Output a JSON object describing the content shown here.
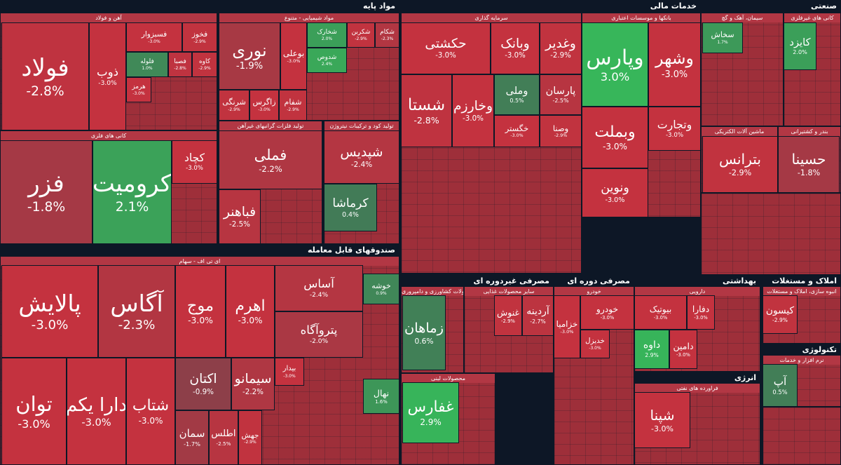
{
  "chart_data": {
    "type": "treemap",
    "color_scale": {
      "negative": "#c4323f",
      "neutral": "#4b4e55",
      "positive": "#37b65a"
    },
    "color_limit": 3,
    "groups": [
      {
        "title": "مواد پایه",
        "subgroups": [
          {
            "title": "آهن و فولاد",
            "names": [
              "فولاد",
              "ذوب",
              "فسبزوار",
              "فخوز",
              "فلوله",
              "فصبا",
              "کاوه",
              "هرمز"
            ],
            "values": [
              -2.8,
              -3.0,
              -3.0,
              -2.9,
              1.0,
              -2.8,
              -2.9,
              -3.0
            ],
            "value_labels": [
              "-2.8%",
              "-3.0%",
              "-3.0%",
              "-2.9%",
              "1.0%",
              "-2.8%",
              "-2.9%",
              "-3.0%"
            ]
          },
          {
            "title": "مواد شیمیایی - متنوع",
            "names": [
              "نوری",
              "بوعلی",
              "شخارک",
              "شکربن",
              "شکام",
              "شدوص",
              "شرنگی",
              "زاگرس",
              "شفام"
            ],
            "values": [
              -1.9,
              -3.0,
              2.0,
              -2.9,
              -2.3,
              2.4,
              -2.9,
              -3.0,
              -2.9
            ],
            "value_labels": [
              "-1.9%",
              "-3.0%",
              "2.0%",
              "-2.9%",
              "-2.3%",
              "2.4%",
              "-2.9%",
              "-3.0%",
              "-2.9%"
            ]
          },
          {
            "title": "کانی های فلزی",
            "names": [
              "فزر",
              "کرومیت",
              "کچاد"
            ],
            "values": [
              -1.8,
              2.1,
              -3.0
            ],
            "value_labels": [
              "-1.8%",
              "2.1%",
              "-3.0%"
            ]
          },
          {
            "title": "تولید فلزات گرانبهای غیرآهن",
            "names": [
              "فملی",
              "فباهنر"
            ],
            "values": [
              -2.2,
              -2.5
            ],
            "value_labels": [
              "-2.2%",
              "-2.5%"
            ]
          },
          {
            "title": "تولید کود و ترکیبات نیتروژن",
            "names": [
              "شپدیس",
              "کرماشا"
            ],
            "values": [
              -2.4,
              0.4
            ],
            "value_labels": [
              "-2.4%",
              "0.4%"
            ]
          }
        ]
      },
      {
        "title": "خدمات مالی",
        "subgroups": [
          {
            "title": "سرمایه گذاری",
            "names": [
              "حکشتی",
              "وبانک",
              "وغدیر",
              "شستا",
              "وخارزم",
              "وملی",
              "پارسان",
              "خگستر",
              "وصنا"
            ],
            "values": [
              -3.0,
              -3.0,
              -2.9,
              -2.8,
              -3.0,
              0.5,
              -2.5,
              -3.0,
              -2.9
            ],
            "value_labels": [
              "-3.0%",
              "-3.0%",
              "-2.9%",
              "-2.8%",
              "-3.0%",
              "0.5%",
              "-2.5%",
              "-3.0%",
              "-2.9%"
            ]
          },
          {
            "title": "بانکها و موسسات اعتباری",
            "names": [
              "وپارس",
              "وشهر",
              "وبملت",
              "وتجارت",
              "ونوین"
            ],
            "values": [
              3.0,
              -3.0,
              -3.0,
              -3.0,
              -3.0
            ],
            "value_labels": [
              "3.0%",
              "-3.0%",
              "-3.0%",
              "-3.0%",
              "-3.0%"
            ]
          }
        ]
      },
      {
        "title": "صنعتی",
        "subgroups": [
          {
            "title": "سیمان، آهک و گچ",
            "names": [
              "سخاش"
            ],
            "values": [
              1.7
            ],
            "value_labels": [
              "1.7%"
            ]
          },
          {
            "title": "کانی های غیرفلزی",
            "names": [
              "کایزد"
            ],
            "values": [
              2.0
            ],
            "value_labels": [
              "2.0%"
            ]
          },
          {
            "title": "ماشین آلات الکتریکی",
            "names": [
              "بترانس"
            ],
            "values": [
              -2.9
            ],
            "value_labels": [
              "-2.9%"
            ]
          },
          {
            "title": "بندر و کشتیرانی",
            "names": [
              "حسینا"
            ],
            "values": [
              -1.8
            ],
            "value_labels": [
              "-1.8%"
            ]
          }
        ]
      },
      {
        "title": "صندوقهای قابل معامله",
        "subgroups": [
          {
            "title": "ای تی اف - سهام",
            "names": [
              "پالایش",
              "آگاس",
              "موج",
              "اهرم",
              "آساس",
              "پتروآگاه",
              "توان",
              "دارا یکم",
              "شتاب",
              "اکتان",
              "سیمانو",
              "بیدار",
              "سمان",
              "اطلس",
              "جهش",
              "خوشه",
              "نهال"
            ],
            "values": [
              -3.0,
              -2.3,
              -3.0,
              -3.0,
              -2.4,
              -2.0,
              -3.0,
              -3.0,
              -3.0,
              -0.9,
              -2.2,
              -3.0,
              -1.7,
              -2.5,
              -2.9,
              0.9,
              1.6
            ],
            "value_labels": [
              "-3.0%",
              "-2.3%",
              "-3.0%",
              "-3.0%",
              "-2.4%",
              "-2.0%",
              "-3.0%",
              "-3.0%",
              "-3.0%",
              "-0.9%",
              "-2.2%",
              "-3.0%",
              "-1.7%",
              "-2.5%",
              "-2.9%",
              "0.9%",
              "1.6%"
            ]
          }
        ]
      },
      {
        "title": "مصرفی غیردوره ای",
        "subgroups": [
          {
            "title": "محصولات کشاورزی و دامپروری",
            "names": [
              "زماهان"
            ],
            "values": [
              0.6
            ],
            "value_labels": [
              "0.6%"
            ]
          },
          {
            "title": "سایر محصولات غذایی",
            "names": [
              "غنوش",
              "آردینه"
            ],
            "values": [
              -2.9,
              -2.7
            ],
            "value_labels": [
              "-2.9%",
              "-2.7%"
            ]
          },
          {
            "title": "محصولات لبنی",
            "names": [
              "غفارس"
            ],
            "values": [
              2.9
            ],
            "value_labels": [
              "2.9%"
            ]
          }
        ]
      },
      {
        "title": "مصرفی دوره ای",
        "subgroups": [
          {
            "title": "خودرو",
            "names": [
              "خودرو",
              "خزامیا",
              "خدیزل"
            ],
            "values": [
              -3.0,
              -3.0,
              -3.0
            ],
            "value_labels": [
              "-3.0%",
              "-3.0%",
              "-3.0%"
            ]
          }
        ]
      },
      {
        "title": "بهداشتی",
        "subgroups": [
          {
            "title": "دارویی",
            "names": [
              "بیوتیک",
              "دفارا",
              "داوه",
              "دامین"
            ],
            "values": [
              -3.0,
              -3.0,
              2.9,
              -3.0
            ],
            "value_labels": [
              "-3.0%",
              "-3.0%",
              "2.9%",
              "-3.0%"
            ]
          }
        ]
      },
      {
        "title": "انرژی",
        "subgroups": [
          {
            "title": "فراورده های نفتی",
            "names": [
              "شپنا"
            ],
            "values": [
              -3.0
            ],
            "value_labels": [
              "-3.0%"
            ]
          }
        ]
      },
      {
        "title": "املاک و مستغلات",
        "subgroups": [
          {
            "title": "انبوه سازی، املاک و مستغلات",
            "names": [
              "کیسون"
            ],
            "values": [
              -2.9
            ],
            "value_labels": [
              "-2.9%"
            ]
          }
        ]
      },
      {
        "title": "تکنولوژی",
        "subgroups": [
          {
            "title": "نرم افزار و خدمات",
            "names": [
              "آپ"
            ],
            "values": [
              0.5
            ],
            "value_labels": [
              "0.5%"
            ]
          }
        ]
      }
    ]
  }
}
